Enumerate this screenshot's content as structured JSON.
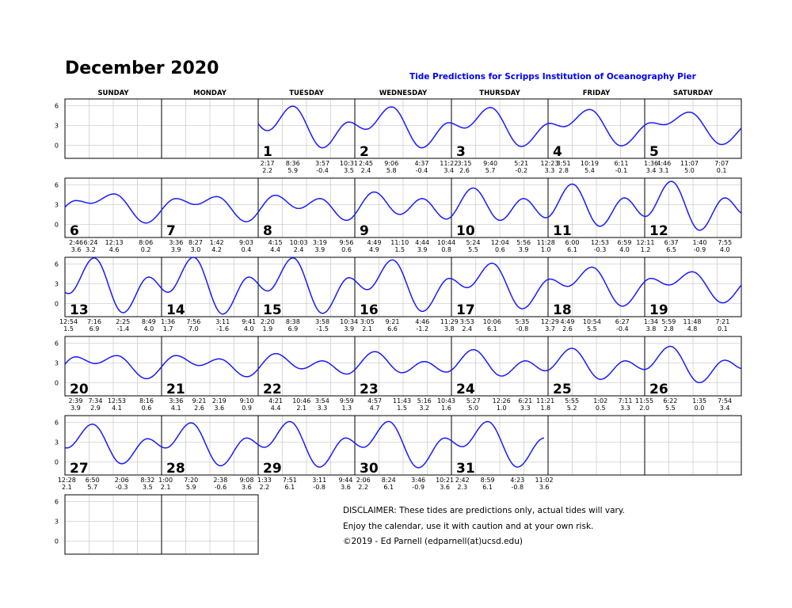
{
  "title": "December 2020",
  "subtitle": "Tide Predictions for Scripps Institution of Oceanography Pier",
  "colors": {
    "subtitle": "#0000ff",
    "curve": "#1a1aff",
    "grid": "#c8c8c8",
    "frame": "#000000"
  },
  "disclaimer": [
    "DISCLAIMER: These tides are predictions only, actual tides will vary.",
    "Enjoy the calendar, use it with caution and at your own risk.",
    "©2019 - Ed Parnell (edparnell(at)ucsd.edu)"
  ],
  "chart_data": {
    "type": "line",
    "weekdays": [
      "SUNDAY",
      "MONDAY",
      "TUESDAY",
      "WEDNESDAY",
      "THURSDAY",
      "FRIDAY",
      "SATURDAY"
    ],
    "first_weekday_index": 2,
    "yticks": [
      "6",
      "3",
      "0"
    ],
    "ylim": [
      -2,
      7
    ],
    "grid": true,
    "days": [
      {
        "day": "1",
        "tides": [
          [
            "2:17",
            "2.2"
          ],
          [
            "8:36",
            "5.9"
          ],
          [
            "3:57",
            "-0.4"
          ],
          [
            "10:31",
            "3.5"
          ]
        ]
      },
      {
        "day": "2",
        "tides": [
          [
            "2:45",
            "2.4"
          ],
          [
            "9:06",
            "5.8"
          ],
          [
            "4:37",
            "-0.4"
          ],
          [
            "11:22",
            "3.4"
          ]
        ]
      },
      {
        "day": "3",
        "tides": [
          [
            "3:15",
            "2.6"
          ],
          [
            "9:40",
            "5.7"
          ],
          [
            "5:21",
            "-0.2"
          ]
        ]
      },
      {
        "day": "4",
        "tides": [
          [
            "12:23",
            "3.3"
          ],
          [
            "3:51",
            "2.8"
          ],
          [
            "10:19",
            "5.4"
          ],
          [
            "6:11",
            "-0.1"
          ]
        ]
      },
      {
        "day": "5",
        "tides": [
          [
            "1:36",
            "3.4"
          ],
          [
            "4:46",
            "3.1"
          ],
          [
            "11:07",
            "5.0"
          ],
          [
            "7:07",
            "0.1"
          ]
        ]
      },
      {
        "day": "6",
        "tides": [
          [
            "2:46",
            "3.6"
          ],
          [
            "6:24",
            "3.2"
          ],
          [
            "12:13",
            "4.6"
          ],
          [
            "8:06",
            "0.2"
          ]
        ]
      },
      {
        "day": "7",
        "tides": [
          [
            "3:36",
            "3.9"
          ],
          [
            "8:27",
            "3.0"
          ],
          [
            "1:42",
            "4.2"
          ],
          [
            "9:03",
            "0.4"
          ]
        ]
      },
      {
        "day": "8",
        "tides": [
          [
            "4:15",
            "4.4"
          ],
          [
            "10:03",
            "2.4"
          ],
          [
            "3:19",
            "3.9"
          ],
          [
            "9:56",
            "0.6"
          ]
        ]
      },
      {
        "day": "9",
        "tides": [
          [
            "4:49",
            "4.9"
          ],
          [
            "11:10",
            "1.5"
          ],
          [
            "4:44",
            "3.9"
          ],
          [
            "10:44",
            "0.8"
          ]
        ]
      },
      {
        "day": "10",
        "tides": [
          [
            "5:24",
            "5.5"
          ],
          [
            "12:04",
            "0.6"
          ],
          [
            "5:56",
            "3.9"
          ],
          [
            "11:28",
            "1.0"
          ]
        ]
      },
      {
        "day": "11",
        "tides": [
          [
            "6:00",
            "6.1"
          ],
          [
            "12:53",
            "-0.3"
          ],
          [
            "6:59",
            "4.0"
          ]
        ]
      },
      {
        "day": "12",
        "tides": [
          [
            "12:11",
            "1.2"
          ],
          [
            "6:37",
            "6.5"
          ],
          [
            "1:40",
            "-0.9"
          ],
          [
            "7:55",
            "4.0"
          ]
        ]
      },
      {
        "day": "13",
        "tides": [
          [
            "12:54",
            "1.5"
          ],
          [
            "7:16",
            "6.9"
          ],
          [
            "2:25",
            "-1.4"
          ],
          [
            "8:49",
            "4.0"
          ]
        ]
      },
      {
        "day": "14",
        "tides": [
          [
            "1:36",
            "1.7"
          ],
          [
            "7:56",
            "7.0"
          ],
          [
            "3:11",
            "-1.6"
          ],
          [
            "9:41",
            "4.0"
          ]
        ]
      },
      {
        "day": "15",
        "tides": [
          [
            "2:20",
            "1.9"
          ],
          [
            "8:38",
            "6.9"
          ],
          [
            "3:58",
            "-1.5"
          ],
          [
            "10:34",
            "3.9"
          ]
        ]
      },
      {
        "day": "16",
        "tides": [
          [
            "3:05",
            "2.1"
          ],
          [
            "9:21",
            "6.6"
          ],
          [
            "4:46",
            "-1.2"
          ],
          [
            "11:29",
            "3.8"
          ]
        ]
      },
      {
        "day": "17",
        "tides": [
          [
            "3:53",
            "2.4"
          ],
          [
            "10:06",
            "6.1"
          ],
          [
            "5:35",
            "-0.8"
          ]
        ]
      },
      {
        "day": "18",
        "tides": [
          [
            "12:29",
            "3.7"
          ],
          [
            "4:49",
            "2.6"
          ],
          [
            "10:54",
            "5.5"
          ],
          [
            "6:27",
            "-0.4"
          ]
        ]
      },
      {
        "day": "19",
        "tides": [
          [
            "1:34",
            "3.8"
          ],
          [
            "5:59",
            "2.8"
          ],
          [
            "11:48",
            "4.8"
          ],
          [
            "7:21",
            "0.1"
          ]
        ]
      },
      {
        "day": "20",
        "tides": [
          [
            "2:39",
            "3.9"
          ],
          [
            "7:34",
            "2.9"
          ],
          [
            "12:53",
            "4.1"
          ],
          [
            "8:16",
            "0.6"
          ]
        ]
      },
      {
        "day": "21",
        "tides": [
          [
            "3:36",
            "4.1"
          ],
          [
            "9:21",
            "2.6"
          ],
          [
            "2:19",
            "3.6"
          ],
          [
            "9:10",
            "0.9"
          ]
        ]
      },
      {
        "day": "22",
        "tides": [
          [
            "4:21",
            "4.4"
          ],
          [
            "10:46",
            "2.1"
          ],
          [
            "3:54",
            "3.3"
          ],
          [
            "9:59",
            "1.3"
          ]
        ]
      },
      {
        "day": "23",
        "tides": [
          [
            "4:57",
            "4.7"
          ],
          [
            "11:43",
            "1.5"
          ],
          [
            "5:16",
            "3.2"
          ],
          [
            "10:43",
            "1.6"
          ]
        ]
      },
      {
        "day": "24",
        "tides": [
          [
            "5:27",
            "5.0"
          ],
          [
            "12:26",
            "1.0"
          ],
          [
            "6:21",
            "3.3"
          ],
          [
            "11:21",
            "1.8"
          ]
        ]
      },
      {
        "day": "25",
        "tides": [
          [
            "5:55",
            "5.2"
          ],
          [
            "1:02",
            "0.5"
          ],
          [
            "7:11",
            "3.3"
          ],
          [
            "11:55",
            "2.0"
          ]
        ]
      },
      {
        "day": "26",
        "tides": [
          [
            "6:22",
            "5.5"
          ],
          [
            "1:35",
            "0.0"
          ],
          [
            "7:54",
            "3.4"
          ]
        ]
      },
      {
        "day": "27",
        "tides": [
          [
            "12:28",
            "2.1"
          ],
          [
            "6:50",
            "5.7"
          ],
          [
            "2:06",
            "-0.3"
          ],
          [
            "8:32",
            "3.5"
          ]
        ]
      },
      {
        "day": "28",
        "tides": [
          [
            "1:00",
            "2.1"
          ],
          [
            "7:20",
            "5.9"
          ],
          [
            "2:38",
            "-0.6"
          ],
          [
            "9:08",
            "3.6"
          ]
        ]
      },
      {
        "day": "29",
        "tides": [
          [
            "1:33",
            "2.2"
          ],
          [
            "7:51",
            "6.1"
          ],
          [
            "3:11",
            "-0.8"
          ],
          [
            "9:44",
            "3.6"
          ]
        ]
      },
      {
        "day": "30",
        "tides": [
          [
            "2:06",
            "2.2"
          ],
          [
            "8:24",
            "6.1"
          ],
          [
            "3:46",
            "-0.9"
          ],
          [
            "10:21",
            "3.6"
          ]
        ]
      },
      {
        "day": "31",
        "tides": [
          [
            "2:42",
            "2.3"
          ],
          [
            "8:59",
            "6.1"
          ],
          [
            "4:23",
            "-0.8"
          ],
          [
            "11:02",
            "3.6"
          ]
        ]
      }
    ]
  }
}
